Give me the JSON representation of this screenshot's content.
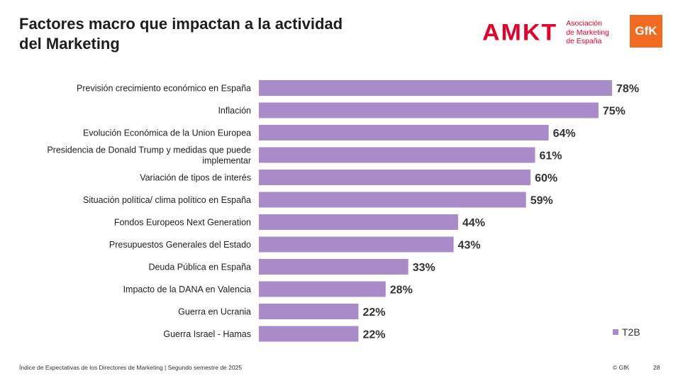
{
  "slide": {
    "title": "Factores macro que impactan a la actividad del Marketing",
    "footer": "Índice de Expectativas de los Directores de Marketing | Segundo semestre de 2025",
    "copyright": "© GfK",
    "page_number": "28"
  },
  "logos": {
    "amkt_word": "AMKT",
    "amkt_line1": "Asociación",
    "amkt_line2": "de Marketing",
    "amkt_line3": "de España",
    "gfk": "GfK"
  },
  "colors": {
    "bar": "#a98bc9",
    "amkt_red": "#e4002b",
    "gfk_orange": "#f06a22"
  },
  "chart_data": {
    "type": "bar",
    "orientation": "horizontal",
    "categories": [
      "Previsión crecimiento económico en España",
      "Inflación",
      "Evolución Económica de la Union Europea",
      "Presidencia de Donald Trump y medidas que puede implementar",
      "Variación de tipos de interés",
      "Situación política/ clima político en España",
      "Fondos Europeos Next Generation",
      "Presupuestos Generales del Estado",
      "Deuda Pública en España",
      "Impacto de la DANA en Valencia",
      "Guerra en Ucrania",
      "Guerra Israel - Hamas"
    ],
    "series": [
      {
        "name": "T2B",
        "values": [
          78,
          75,
          64,
          61,
          60,
          59,
          44,
          43,
          33,
          28,
          22,
          22
        ]
      }
    ],
    "data_labels": [
      "78%",
      "75%",
      "64%",
      "61%",
      "60%",
      "59%",
      "44%",
      "43%",
      "33%",
      "28%",
      "22%",
      "22%"
    ],
    "legend": "bottom-right",
    "grid": false
  }
}
